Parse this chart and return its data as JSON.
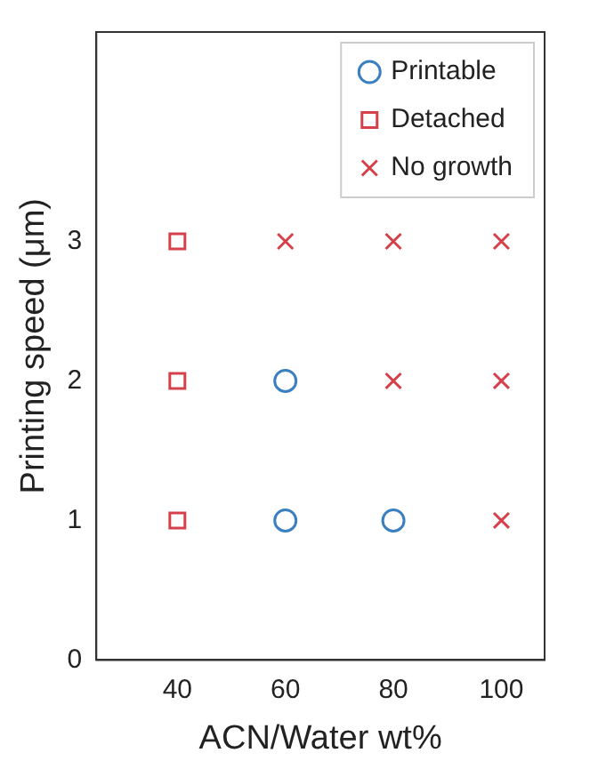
{
  "chart_data": {
    "type": "scatter",
    "xlabel": "ACN/Water wt%",
    "ylabel": "Printing speed (μm)",
    "xlim": [
      25,
      108
    ],
    "xticks": [
      40,
      60,
      80,
      100
    ],
    "ylim": [
      0,
      4.5
    ],
    "yticks": [
      0,
      1,
      2,
      3
    ],
    "grid": false,
    "legend": "top right",
    "series": [
      {
        "name": "Printable",
        "color": "#3a7fc0",
        "marker": "circle",
        "x": [
          60,
          60,
          80
        ],
        "values": [
          2,
          1,
          1
        ]
      },
      {
        "name": "Detached",
        "color": "#d6404a",
        "marker": "square",
        "x": [
          40,
          40,
          40
        ],
        "values": [
          3,
          2,
          1
        ]
      },
      {
        "name": "No growth",
        "color": "#d6404a",
        "marker": "cross",
        "x": [
          60,
          80,
          100,
          80,
          100,
          100
        ],
        "values": [
          3,
          3,
          3,
          2,
          2,
          1
        ]
      }
    ]
  }
}
